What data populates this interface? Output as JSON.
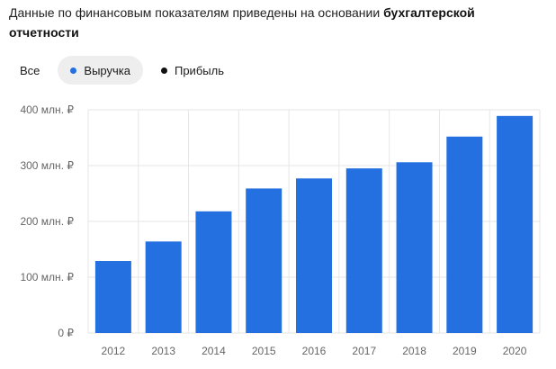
{
  "intro": {
    "text": "Данные по финансовым показателям приведены на основании ",
    "bold": "бухгалтерской отчетности"
  },
  "filters": [
    {
      "label": "Все",
      "active": false,
      "dot_color": null
    },
    {
      "label": "Выручка",
      "active": true,
      "dot_color": "#2470e0"
    },
    {
      "label": "Прибыль",
      "active": false,
      "dot_color": "#111111"
    }
  ],
  "colors": {
    "bar": "#2470e0",
    "grid": "#e6e6e6",
    "tick_text": "#666666"
  },
  "chart_data": {
    "type": "bar",
    "categories": [
      "2012",
      "2013",
      "2014",
      "2015",
      "2016",
      "2017",
      "2018",
      "2019",
      "2020"
    ],
    "series": [
      {
        "name": "Выручка",
        "values": [
          129,
          164,
          218,
          259,
          277,
          295,
          306,
          352,
          389
        ]
      }
    ],
    "ylim": [
      0,
      400
    ],
    "yticks": [
      0,
      100,
      200,
      300,
      400
    ],
    "ytick_labels": [
      "0 ₽",
      "100 млн. ₽",
      "200 млн. ₽",
      "300 млн. ₽",
      "400 млн. ₽"
    ],
    "grid": true,
    "legend": "top-left"
  }
}
